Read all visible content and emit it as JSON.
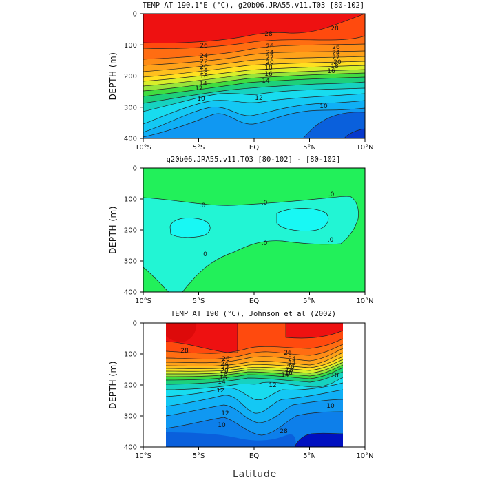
{
  "figure": {
    "xlabel": "Latitude"
  },
  "chart_data": [
    {
      "type": "heatmap",
      "title": "TEMP AT 190.1°E (°C), g20b06.JRA55.v11.T03 [80-102]",
      "xlabel": "",
      "ylabel": "DEPTH (m)",
      "xlim": [
        -10,
        10
      ],
      "ylim": [
        400,
        0
      ],
      "x_ticks": [
        "10°S",
        "5°S",
        "EQ",
        "5°N",
        "10°N"
      ],
      "y_ticks": [
        "0",
        "100",
        "200",
        "300",
        "400"
      ],
      "contour_labels": [
        "26",
        "24",
        "22",
        "20",
        "18",
        "16",
        "14",
        "12",
        "10",
        "28",
        "26",
        "24",
        "22",
        "20",
        "18",
        "16",
        "14",
        "12",
        "10",
        "28",
        "26",
        "24",
        "22",
        "20",
        "18",
        "16"
      ],
      "note": "upper ~80 m above 28°C; thermocline 100–250 m"
    },
    {
      "type": "heatmap",
      "title": "g20b06.JRA55.v11.T03 [80-102] - [80-102]",
      "xlabel": "",
      "ylabel": "DEPTH (m)",
      "xlim": [
        -10,
        10
      ],
      "ylim": [
        400,
        0
      ],
      "x_ticks": [
        "10°S",
        "5°S",
        "EQ",
        "5°N",
        "10°N"
      ],
      "y_ticks": [
        "0",
        "100",
        "200",
        "300",
        "400"
      ],
      "contour_labels": [
        ".0",
        ".0",
        "0",
        ".0",
        ".0",
        ".0"
      ],
      "note": "difference field, all zero"
    },
    {
      "type": "heatmap",
      "title": "TEMP AT 190 (°C), Johnson et al (2002)",
      "xlabel": "",
      "ylabel": "DEPTH (m)",
      "xlim": [
        -10,
        10
      ],
      "ylim": [
        400,
        0
      ],
      "x_ticks": [
        "10°S",
        "5°S",
        "EQ",
        "5°N",
        "10°N"
      ],
      "y_ticks": [
        "0",
        "100",
        "200",
        "300",
        "400"
      ],
      "data_x_range": [
        -8,
        8
      ],
      "contour_labels": [
        "28",
        "26",
        "24",
        "22",
        "20",
        "18",
        "16",
        "14",
        "12",
        "26",
        "24",
        "22",
        "20",
        "18",
        "16",
        "14",
        "12",
        "12",
        "10",
        "10",
        "10",
        "28"
      ],
      "note": "observations span 8°S–8°N"
    }
  ],
  "colors": {
    "t29": "#ee1111",
    "t28": "#ff4a0e",
    "t27": "#ff6d12",
    "t26": "#ff8c16",
    "t25": "#ffa21a",
    "t24": "#ffc01e",
    "t23": "#ffe020",
    "t22": "#d8ee2a",
    "t21": "#98e43a",
    "t20": "#40dc40",
    "t19": "#1dd07a",
    "t18": "#16d2c0",
    "t17": "#18dcef",
    "t16": "#14c8f4",
    "t15": "#10b0f6",
    "t14": "#1098f2",
    "t13": "#0d7fea",
    "t12": "#0a60dc",
    "t11": "#0638cc",
    "t10": "#0010c0",
    "diff_bg": "#22f05a",
    "diff_zero": "#22f5d4",
    "diff_neg": "#18f8f4"
  }
}
